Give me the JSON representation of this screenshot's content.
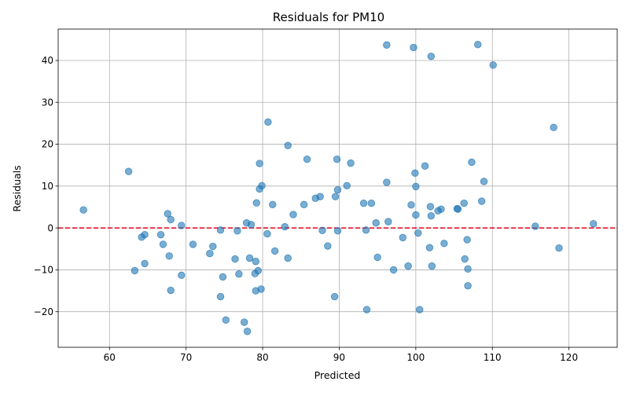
{
  "chart_data": {
    "type": "scatter",
    "title": "Residuals for PM10",
    "xlabel": "Predicted",
    "ylabel": "Residuals",
    "xlim": [
      53.3,
      126.3
    ],
    "ylim": [
      -28.5,
      47.5
    ],
    "xticks": [
      60,
      70,
      80,
      90,
      100,
      110,
      120
    ],
    "yticks": [
      -20,
      -10,
      0,
      10,
      20,
      30,
      40
    ],
    "xtick_labels": [
      "60",
      "70",
      "80",
      "90",
      "100",
      "110",
      "120"
    ],
    "ytick_labels": [
      "−20",
      "−10",
      "0",
      "10",
      "20",
      "30",
      "40"
    ],
    "grid": true,
    "reference_line": {
      "y": 0,
      "style": "dashed",
      "color": "#e8001c"
    },
    "marker_color": "#1f77b4",
    "points": [
      {
        "x": 56.6,
        "y": 4.3
      },
      {
        "x": 62.5,
        "y": 13.5
      },
      {
        "x": 63.3,
        "y": -10.2
      },
      {
        "x": 64.2,
        "y": -2.2
      },
      {
        "x": 64.6,
        "y": -1.6
      },
      {
        "x": 64.6,
        "y": -8.5
      },
      {
        "x": 66.7,
        "y": -1.6
      },
      {
        "x": 67.0,
        "y": -3.9
      },
      {
        "x": 67.6,
        "y": 3.4
      },
      {
        "x": 67.8,
        "y": -6.7
      },
      {
        "x": 68.0,
        "y": 2.0
      },
      {
        "x": 68.0,
        "y": -14.9
      },
      {
        "x": 69.4,
        "y": 0.6
      },
      {
        "x": 69.4,
        "y": -11.3
      },
      {
        "x": 70.9,
        "y": -3.9
      },
      {
        "x": 73.1,
        "y": -6.1
      },
      {
        "x": 73.5,
        "y": -4.4
      },
      {
        "x": 74.5,
        "y": -0.5
      },
      {
        "x": 74.5,
        "y": -16.4
      },
      {
        "x": 74.8,
        "y": -11.7
      },
      {
        "x": 75.2,
        "y": -22.0
      },
      {
        "x": 76.4,
        "y": -7.4
      },
      {
        "x": 76.7,
        "y": -0.7
      },
      {
        "x": 76.9,
        "y": -11.0
      },
      {
        "x": 77.6,
        "y": -22.5
      },
      {
        "x": 77.9,
        "y": 1.2
      },
      {
        "x": 78.0,
        "y": -24.7
      },
      {
        "x": 78.3,
        "y": -7.2
      },
      {
        "x": 78.5,
        "y": 0.8
      },
      {
        "x": 79.0,
        "y": -10.9
      },
      {
        "x": 79.1,
        "y": -8.0
      },
      {
        "x": 79.1,
        "y": -15.0
      },
      {
        "x": 79.2,
        "y": 6.0
      },
      {
        "x": 79.4,
        "y": -10.2
      },
      {
        "x": 79.6,
        "y": 15.4
      },
      {
        "x": 79.6,
        "y": 9.3
      },
      {
        "x": 79.8,
        "y": -14.6
      },
      {
        "x": 79.9,
        "y": 10.1
      },
      {
        "x": 80.6,
        "y": -1.4
      },
      {
        "x": 80.7,
        "y": 25.3
      },
      {
        "x": 81.3,
        "y": 5.6
      },
      {
        "x": 81.6,
        "y": -5.5
      },
      {
        "x": 82.9,
        "y": 0.3
      },
      {
        "x": 83.3,
        "y": 19.7
      },
      {
        "x": 83.3,
        "y": -7.2
      },
      {
        "x": 84.0,
        "y": 3.2
      },
      {
        "x": 85.4,
        "y": 5.6
      },
      {
        "x": 85.8,
        "y": 16.4
      },
      {
        "x": 86.9,
        "y": 7.1
      },
      {
        "x": 87.5,
        "y": 7.5
      },
      {
        "x": 87.8,
        "y": -0.6
      },
      {
        "x": 88.5,
        "y": -4.3
      },
      {
        "x": 89.4,
        "y": -16.4
      },
      {
        "x": 89.5,
        "y": 7.5
      },
      {
        "x": 89.7,
        "y": 16.4
      },
      {
        "x": 89.8,
        "y": -0.7
      },
      {
        "x": 89.8,
        "y": 9.1
      },
      {
        "x": 91.0,
        "y": 10.1
      },
      {
        "x": 91.5,
        "y": 15.5
      },
      {
        "x": 93.2,
        "y": 5.9
      },
      {
        "x": 93.5,
        "y": -0.5
      },
      {
        "x": 93.6,
        "y": -19.5
      },
      {
        "x": 94.2,
        "y": 5.9
      },
      {
        "x": 94.8,
        "y": 1.2
      },
      {
        "x": 95.0,
        "y": -7.0
      },
      {
        "x": 96.2,
        "y": 43.7
      },
      {
        "x": 96.2,
        "y": 10.9
      },
      {
        "x": 96.4,
        "y": 1.5
      },
      {
        "x": 97.1,
        "y": -10.0
      },
      {
        "x": 98.3,
        "y": -2.3
      },
      {
        "x": 99.0,
        "y": -9.1
      },
      {
        "x": 99.4,
        "y": 5.5
      },
      {
        "x": 99.7,
        "y": 43.1
      },
      {
        "x": 99.9,
        "y": 13.1
      },
      {
        "x": 100.0,
        "y": 9.9
      },
      {
        "x": 100.0,
        "y": 3.1
      },
      {
        "x": 100.3,
        "y": -1.2
      },
      {
        "x": 100.5,
        "y": -19.5
      },
      {
        "x": 101.2,
        "y": 14.8
      },
      {
        "x": 101.8,
        "y": -4.7
      },
      {
        "x": 101.9,
        "y": 5.1
      },
      {
        "x": 102.0,
        "y": 41.0
      },
      {
        "x": 102.0,
        "y": 2.9
      },
      {
        "x": 102.1,
        "y": -9.1
      },
      {
        "x": 102.9,
        "y": 4.1
      },
      {
        "x": 103.3,
        "y": 4.5
      },
      {
        "x": 103.7,
        "y": -3.7
      },
      {
        "x": 105.4,
        "y": 4.6
      },
      {
        "x": 105.5,
        "y": 4.5
      },
      {
        "x": 106.3,
        "y": 5.9
      },
      {
        "x": 106.4,
        "y": -7.4
      },
      {
        "x": 106.7,
        "y": -2.8
      },
      {
        "x": 106.8,
        "y": -9.8
      },
      {
        "x": 106.8,
        "y": -13.8
      },
      {
        "x": 107.3,
        "y": 15.7
      },
      {
        "x": 108.1,
        "y": 43.8
      },
      {
        "x": 108.6,
        "y": 6.4
      },
      {
        "x": 108.9,
        "y": 11.1
      },
      {
        "x": 110.1,
        "y": 38.9
      },
      {
        "x": 115.6,
        "y": 0.4
      },
      {
        "x": 118.0,
        "y": 24.0
      },
      {
        "x": 118.7,
        "y": -4.8
      },
      {
        "x": 123.2,
        "y": 1.0
      }
    ]
  }
}
